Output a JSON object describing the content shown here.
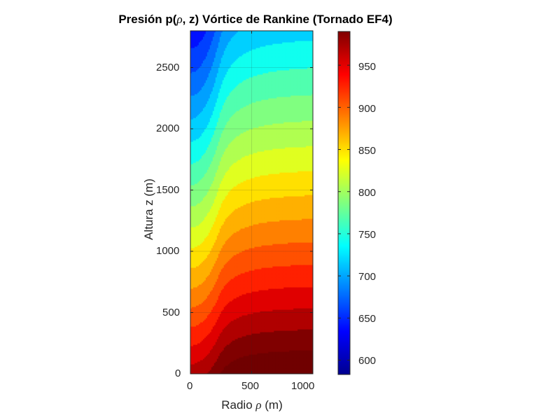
{
  "title": {
    "prefix": "Presión p(",
    "rho": "ρ",
    "suffix": ", z) Vórtice de Rankine (Tornado EF4)"
  },
  "axes": {
    "xlabel_prefix": "Radio ",
    "xlabel_rho": "ρ",
    "xlabel_suffix": " (m)",
    "ylabel": "Altura z (m)",
    "xticks": [
      "0",
      "500",
      "1000"
    ],
    "yticks": [
      "0",
      "500",
      "1000",
      "1500",
      "2000",
      "2500"
    ]
  },
  "colorbar": {
    "ticks": [
      "600",
      "650",
      "700",
      "750",
      "800",
      "850",
      "900",
      "950"
    ]
  },
  "chart_data": {
    "type": "heatmap",
    "subtype": "filled-contour",
    "title": "Presión p(ρ, z) Vórtice de Rankine (Tornado EF4)",
    "xlabel": "Radio ρ (m)",
    "ylabel": "Altura z (m)",
    "xlim": [
      0,
      1000
    ],
    "ylim": [
      0,
      2800
    ],
    "xticks": [
      0,
      500,
      1000
    ],
    "yticks": [
      0,
      500,
      1000,
      1500,
      2000,
      2500
    ],
    "grid": true,
    "colormap": "jet",
    "colorbar": {
      "clim": [
        583,
        990
      ],
      "ticks": [
        600,
        650,
        700,
        750,
        800,
        850,
        900,
        950
      ],
      "position": "right"
    },
    "description": "Pressure increases downward (with decreasing altitude) and outward with radius; core (ρ≈0–300 m) has lower pressure, producing S-shaped contours.",
    "corner_values": {
      "top_left": 585,
      "top_right": 680,
      "bottom_left": 905,
      "bottom_right": 985
    },
    "levels": [
      580,
      600,
      620,
      640,
      660,
      680,
      700,
      720,
      740,
      760,
      780,
      800,
      820,
      840,
      860,
      880,
      900,
      920,
      940,
      960,
      980,
      1000
    ],
    "band_colors": [
      "#00008F",
      "#0000C8",
      "#0010FF",
      "#0040FF",
      "#0070FF",
      "#00A0FF",
      "#00D0FF",
      "#10FFEF",
      "#50FFAF",
      "#80FF80",
      "#B0FF50",
      "#E0FF20",
      "#FFE000",
      "#FFB000",
      "#FF8000",
      "#FF5000",
      "#FF2000",
      "#E00000",
      "#B00000",
      "#800000",
      "#700000"
    ]
  }
}
